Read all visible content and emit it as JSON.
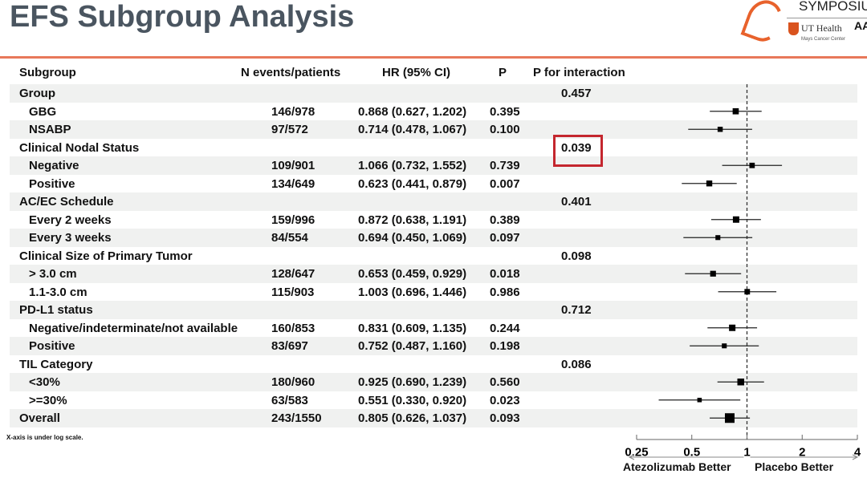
{
  "title": "EFS Subgroup Analysis",
  "logo": {
    "symposium": "SYMPOSIUM",
    "ut_health": "UT Health",
    "mays": "Mays Cancer Center",
    "aacr": "AAC"
  },
  "note": "X-axis is under log scale.",
  "chart_data": {
    "type": "forest",
    "columns": [
      "Subgroup",
      "N events/patients",
      "HR (95% CI)",
      "P",
      "P for interaction"
    ],
    "x_scale": "log",
    "x_ticks": [
      "0.25",
      "0.5",
      "1",
      "2",
      "4"
    ],
    "xlim": [
      0.25,
      4
    ],
    "reference_line": 1,
    "left_label": "Atezolizumab Better",
    "right_label": "Placebo Better",
    "highlight_color": "#c4262e",
    "rows": [
      {
        "label": "Group",
        "header": true,
        "pint": "0.457"
      },
      {
        "label": "GBG",
        "n": "146/978",
        "hr_text": "0.868 (0.627, 1.202)",
        "p": "0.395",
        "hr": 0.868,
        "lo": 0.627,
        "hi": 1.202
      },
      {
        "label": "NSABP",
        "n": "97/572",
        "hr_text": "0.714 (0.478, 1.067)",
        "p": "0.100",
        "hr": 0.714,
        "lo": 0.478,
        "hi": 1.067
      },
      {
        "label": "Clinical Nodal Status",
        "header": true,
        "pint": "0.039",
        "highlight": true
      },
      {
        "label": "Negative",
        "n": "109/901",
        "hr_text": "1.066 (0.732, 1.552)",
        "p": "0.739",
        "hr": 1.066,
        "lo": 0.732,
        "hi": 1.552
      },
      {
        "label": "Positive",
        "n": "134/649",
        "hr_text": "0.623 (0.441, 0.879)",
        "p": "0.007",
        "hr": 0.623,
        "lo": 0.441,
        "hi": 0.879
      },
      {
        "label": "AC/EC Schedule",
        "header": true,
        "pint": "0.401"
      },
      {
        "label": "Every 2 weeks",
        "n": "159/996",
        "hr_text": "0.872 (0.638, 1.191)",
        "p": "0.389",
        "hr": 0.872,
        "lo": 0.638,
        "hi": 1.191
      },
      {
        "label": "Every 3 weeks",
        "n": "84/554",
        "hr_text": "0.694 (0.450, 1.069)",
        "p": "0.097",
        "hr": 0.694,
        "lo": 0.45,
        "hi": 1.069
      },
      {
        "label": "Clinical Size of Primary Tumor",
        "header": true,
        "pint": "0.098"
      },
      {
        "label": "> 3.0 cm",
        "n": "128/647",
        "hr_text": "0.653 (0.459, 0.929)",
        "p": "0.018",
        "hr": 0.653,
        "lo": 0.459,
        "hi": 0.929
      },
      {
        "label": "1.1-3.0 cm",
        "n": "115/903",
        "hr_text": "1.003 (0.696, 1.446)",
        "p": "0.986",
        "hr": 1.003,
        "lo": 0.696,
        "hi": 1.446
      },
      {
        "label": "PD-L1 status",
        "header": true,
        "pint": "0.712"
      },
      {
        "label": "Negative/indeterminate/not available",
        "n": "160/853",
        "hr_text": "0.831 (0.609, 1.135)",
        "p": "0.244",
        "hr": 0.831,
        "lo": 0.609,
        "hi": 1.135
      },
      {
        "label": "Positive",
        "n": "83/697",
        "hr_text": "0.752 (0.487, 1.160)",
        "p": "0.198",
        "hr": 0.752,
        "lo": 0.487,
        "hi": 1.16
      },
      {
        "label": "TIL Category",
        "header": true,
        "pint": "0.086"
      },
      {
        "label": "<30%",
        "n": "180/960",
        "hr_text": "0.925 (0.690, 1.239)",
        "p": "0.560",
        "hr": 0.925,
        "lo": 0.69,
        "hi": 1.239
      },
      {
        "label": ">=30%",
        "n": "63/583",
        "hr_text": "0.551 (0.330, 0.920)",
        "p": "0.023",
        "hr": 0.551,
        "lo": 0.33,
        "hi": 0.92
      },
      {
        "label": "Overall",
        "header": true,
        "overall": true,
        "n": "243/1550",
        "hr_text": "0.805 (0.626, 1.037)",
        "p": "0.093",
        "hr": 0.805,
        "lo": 0.626,
        "hi": 1.037
      }
    ]
  }
}
